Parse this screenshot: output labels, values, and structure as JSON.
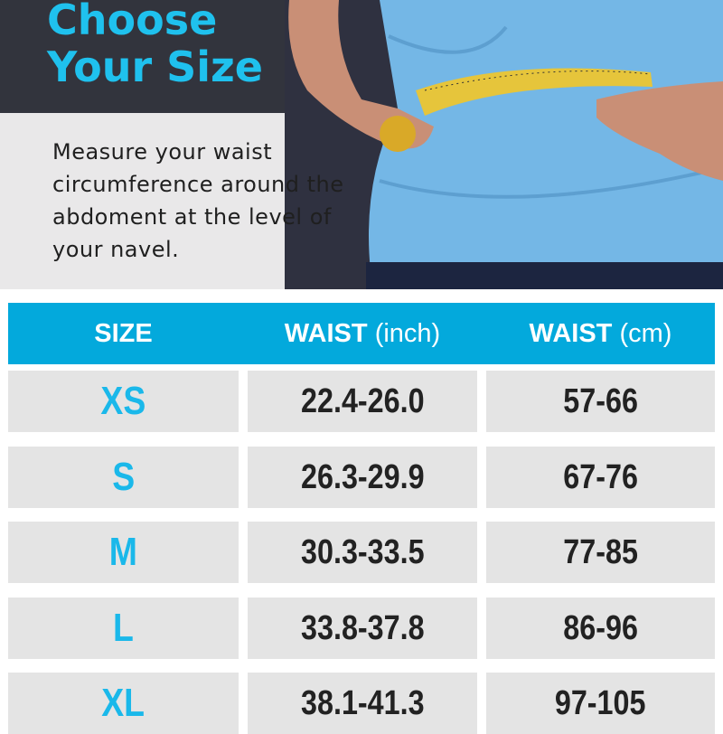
{
  "header": {
    "title_line1": "Choose",
    "title_line2": "Your Size",
    "description": "Measure your waist circumference around the abdoment at the level of your navel."
  },
  "colors": {
    "accent": "#1fc1ee",
    "table_header": "#03a9dc",
    "dark_panel": "#32343d"
  },
  "table": {
    "columns": [
      {
        "bold": "SIZE",
        "unit": ""
      },
      {
        "bold": "WAIST",
        "unit": "(inch)"
      },
      {
        "bold": "WAIST",
        "unit": "(cm)"
      }
    ],
    "rows": [
      {
        "size": "XS",
        "inch": "22.4-26.0",
        "cm": "57-66"
      },
      {
        "size": "S",
        "inch": "26.3-29.9",
        "cm": "67-76"
      },
      {
        "size": "M",
        "inch": "30.3-33.5",
        "cm": "77-85"
      },
      {
        "size": "L",
        "inch": "33.8-37.8",
        "cm": "86-96"
      },
      {
        "size": "XL",
        "inch": "38.1-41.3",
        "cm": "97-105"
      }
    ]
  }
}
